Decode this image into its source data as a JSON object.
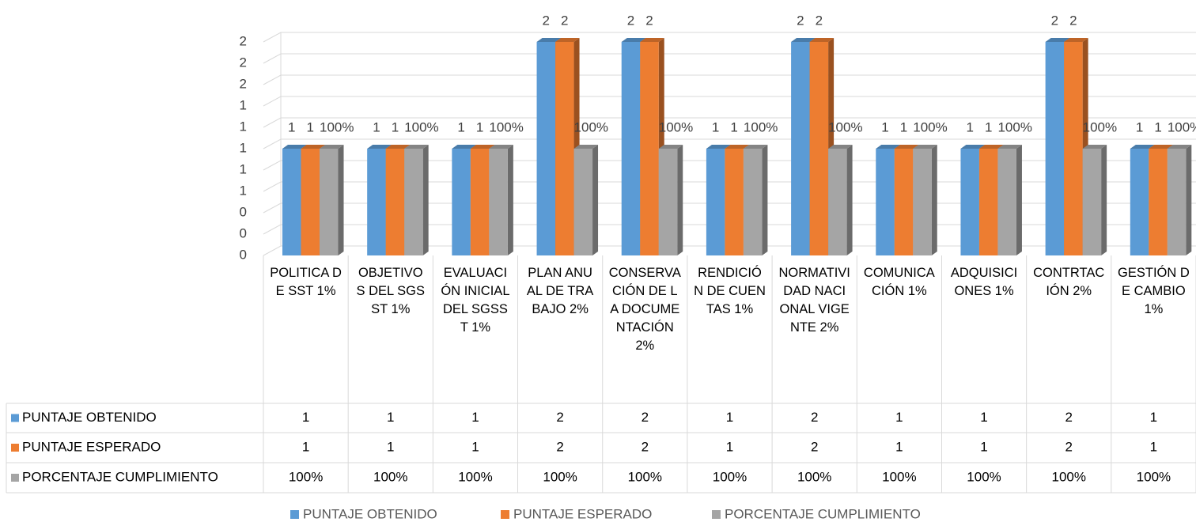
{
  "chart_data": {
    "type": "bar3d",
    "categories": [
      "POLITICA DE SST 1%",
      "OBJETIVOS DEL SGSST 1%",
      "EVALUACIÓN INICIAL DEL SGSST 1%",
      "PLAN ANUAL DE TRABAJO 2%",
      "CONSERVACIÓN DE LA DOCUMENTACIÓN 2%",
      "RENDICIÓN DE CUENTAS 1%",
      "NORMATIVIDAD NACIONAL VIGENTE 2%",
      "COMUNICACIÓN 1%",
      "ADQUISICIONES 1%",
      "CONTRTACIÓN 2%",
      "GESTIÓN DE CAMBIO 1%"
    ],
    "series": [
      {
        "name": "PUNTAJE OBTENIDO",
        "color": "#5b9bd5",
        "values": [
          1,
          1,
          1,
          2,
          2,
          1,
          2,
          1,
          1,
          2,
          1
        ]
      },
      {
        "name": "PUNTAJE ESPERADO",
        "color": "#ed7d31",
        "values": [
          1,
          1,
          1,
          2,
          2,
          1,
          2,
          1,
          1,
          2,
          1
        ]
      },
      {
        "name": "PORCENTAJE CUMPLIMIENTO",
        "color": "#a5a5a5",
        "values": [
          1,
          1,
          1,
          1,
          1,
          1,
          1,
          1,
          1,
          1,
          1
        ],
        "value_labels": [
          "100%",
          "100%",
          "100%",
          "100%",
          "100%",
          "100%",
          "100%",
          "100%",
          "100%",
          "100%",
          "100%"
        ]
      }
    ],
    "ylim": [
      0,
      2
    ],
    "yticks": [
      0,
      {
        "value": 0.2,
        "label": "0"
      },
      {
        "value": 0.4,
        "label": "0"
      },
      {
        "value": 0.6,
        "label": "1"
      },
      {
        "value": 0.8,
        "label": "1"
      },
      {
        "value": 1.0,
        "label": "1"
      },
      {
        "value": 1.2,
        "label": "1"
      },
      {
        "value": 1.4,
        "label": "1"
      },
      {
        "value": 1.6,
        "label": "2"
      },
      {
        "value": 1.8,
        "label": "2"
      },
      {
        "value": 2.0,
        "label": "2"
      }
    ],
    "grid": true,
    "legend": "bottom"
  }
}
